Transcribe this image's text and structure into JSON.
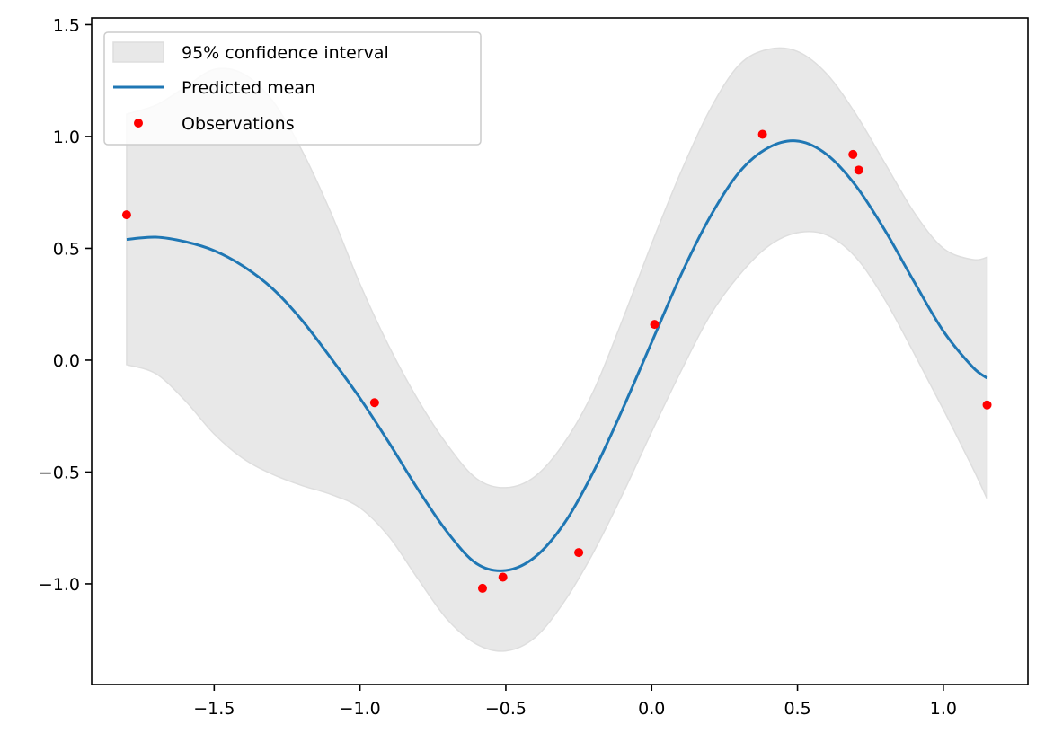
{
  "chart_data": {
    "type": "line",
    "title": "",
    "xlabel": "",
    "ylabel": "",
    "xlim": [
      -1.92,
      1.29
    ],
    "ylim": [
      -1.45,
      1.53
    ],
    "grid": false,
    "legend_position": "top-left",
    "x_ticks": [
      -1.5,
      -1.0,
      -0.5,
      0.0,
      0.5,
      1.0
    ],
    "x_tick_labels": [
      "−1.5",
      "−1.0",
      "−0.5",
      "0.0",
      "0.5",
      "1.0"
    ],
    "y_ticks": [
      1.5,
      1.0,
      0.5,
      0.0,
      -0.5,
      -1.0
    ],
    "y_tick_labels": [
      "1.5",
      "1.0",
      "0.5",
      "0.0",
      "−0.5",
      "−1.0"
    ],
    "legend": [
      {
        "label": "95% confidence interval",
        "kind": "band"
      },
      {
        "label": "Predicted mean",
        "kind": "line"
      },
      {
        "label": "Observations",
        "kind": "marker"
      }
    ],
    "colors": {
      "mean": "#1f77b4",
      "band_fill": "#e8e8e8",
      "band_edge": "#dedede",
      "observations": "#ff0000"
    },
    "x": [
      -1.8,
      -1.7,
      -1.6,
      -1.5,
      -1.4,
      -1.3,
      -1.2,
      -1.1,
      -1.0,
      -0.9,
      -0.8,
      -0.7,
      -0.6,
      -0.5,
      -0.4,
      -0.3,
      -0.2,
      -0.1,
      0.0,
      0.1,
      0.2,
      0.3,
      0.4,
      0.5,
      0.6,
      0.7,
      0.8,
      0.9,
      1.0,
      1.1,
      1.15
    ],
    "series": [
      {
        "name": "Predicted mean",
        "values": [
          0.54,
          0.55,
          0.53,
          0.49,
          0.42,
          0.32,
          0.18,
          0.01,
          -0.17,
          -0.37,
          -0.58,
          -0.77,
          -0.91,
          -0.94,
          -0.88,
          -0.73,
          -0.5,
          -0.22,
          0.08,
          0.38,
          0.64,
          0.84,
          0.95,
          0.98,
          0.92,
          0.78,
          0.58,
          0.35,
          0.13,
          -0.03,
          -0.08
        ]
      },
      {
        "name": "95% confidence interval",
        "lower": [
          -0.02,
          -0.06,
          -0.18,
          -0.33,
          -0.44,
          -0.51,
          -0.56,
          -0.6,
          -0.66,
          -0.79,
          -0.98,
          -1.16,
          -1.27,
          -1.3,
          -1.24,
          -1.08,
          -0.86,
          -0.6,
          -0.32,
          -0.05,
          0.2,
          0.38,
          0.51,
          0.57,
          0.56,
          0.46,
          0.27,
          0.03,
          -0.22,
          -0.48,
          -0.62
        ],
        "upper": [
          1.1,
          1.14,
          1.22,
          1.3,
          1.28,
          1.16,
          0.94,
          0.66,
          0.34,
          0.06,
          -0.18,
          -0.38,
          -0.53,
          -0.57,
          -0.52,
          -0.37,
          -0.14,
          0.18,
          0.52,
          0.84,
          1.12,
          1.32,
          1.39,
          1.38,
          1.28,
          1.1,
          0.88,
          0.66,
          0.5,
          0.45,
          0.46
        ]
      }
    ],
    "observations": {
      "name": "Observations",
      "x": [
        -1.8,
        -0.95,
        -0.58,
        -0.51,
        -0.25,
        0.01,
        0.38,
        0.69,
        0.71,
        1.15
      ],
      "y": [
        0.65,
        -0.19,
        -1.02,
        -0.97,
        -0.86,
        0.16,
        1.01,
        0.92,
        0.85,
        -0.2
      ]
    }
  }
}
